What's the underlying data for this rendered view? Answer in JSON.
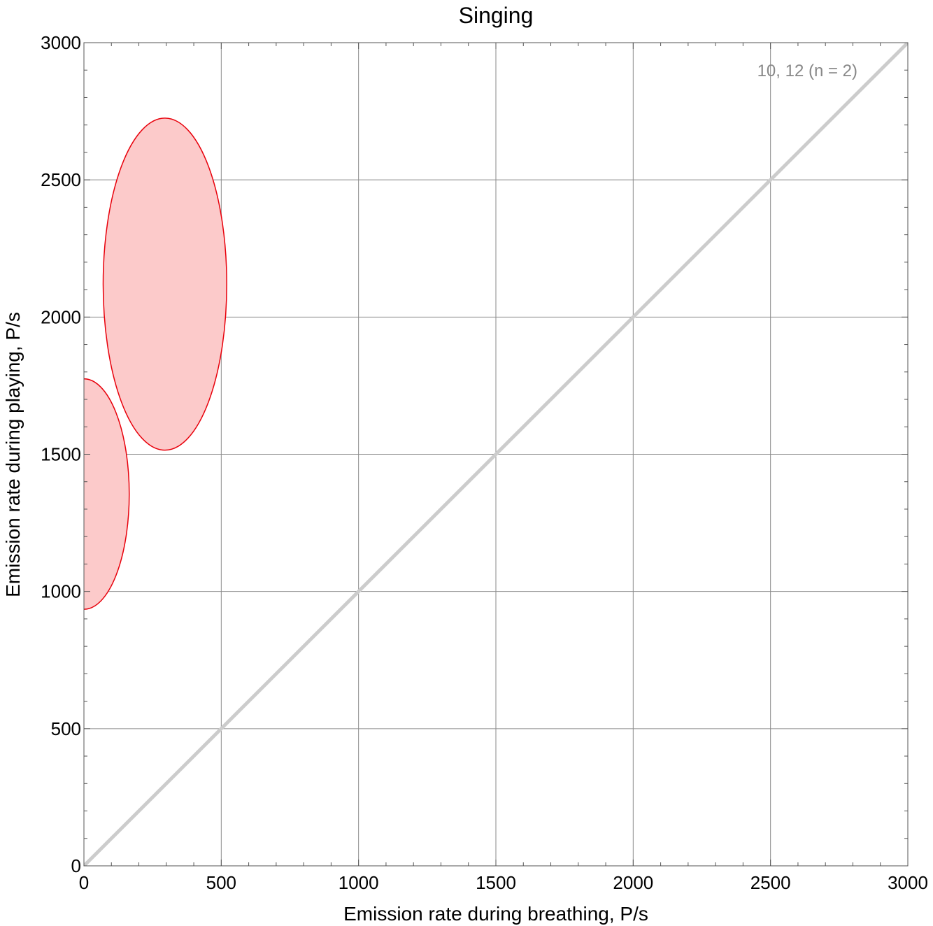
{
  "chart_data": {
    "type": "scatter",
    "title": "Singing",
    "xlabel": "Emission rate during breathing,  P/s",
    "ylabel": "Emission rate during playing,  P/s",
    "xlim": [
      0,
      3000
    ],
    "ylim": [
      0,
      3000
    ],
    "xticks": [
      0,
      500,
      1000,
      1500,
      2000,
      2500,
      3000
    ],
    "yticks": [
      0,
      500,
      1000,
      1500,
      2000,
      2500,
      3000
    ],
    "minor_tick_step": 100,
    "grid": true,
    "annotation": "10, 12  (n = 2)",
    "reference_line": {
      "from": [
        0,
        0
      ],
      "to": [
        3000,
        3000
      ],
      "color": "#cccccc"
    },
    "series": [
      {
        "shape": "ellipse",
        "cx": 0,
        "cy": 1355,
        "rx": 165,
        "ry": 420,
        "fill": "#fccaca",
        "stroke": "#e8000b"
      },
      {
        "shape": "ellipse",
        "cx": 295,
        "cy": 2120,
        "rx": 225,
        "ry": 605,
        "fill": "#fccaca",
        "stroke": "#e8000b"
      }
    ]
  }
}
